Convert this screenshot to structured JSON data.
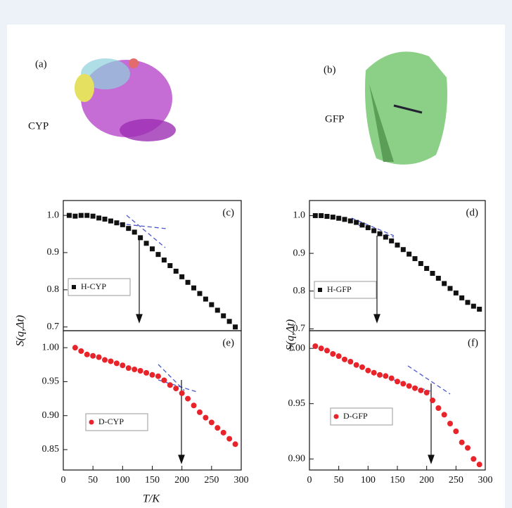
{
  "figure": {
    "panels_top": [
      {
        "label": "(a)",
        "protein": "CYP"
      },
      {
        "label": "(b)",
        "protein": "GFP"
      }
    ],
    "y_label": "S(q,Δt)",
    "x_label": "T/K"
  },
  "chart_data": [
    {
      "type": "scatter",
      "panel_label": "(c)",
      "x": [
        10,
        20,
        30,
        40,
        50,
        60,
        70,
        80,
        90,
        100,
        110,
        120,
        130,
        140,
        150,
        160,
        170,
        180,
        190,
        200,
        210,
        220,
        230,
        240,
        250,
        260,
        270,
        280,
        290
      ],
      "series": [
        {
          "name": "H-CYP",
          "color": "#111111",
          "marker": "square",
          "values": [
            1.0,
            0.998,
            1.0,
            1.0,
            0.998,
            0.993,
            0.99,
            0.985,
            0.98,
            0.975,
            0.965,
            0.955,
            0.94,
            0.925,
            0.91,
            0.895,
            0.88,
            0.865,
            0.85,
            0.835,
            0.82,
            0.805,
            0.79,
            0.775,
            0.76,
            0.745,
            0.73,
            0.715,
            0.7
          ]
        }
      ],
      "xlim": [
        0,
        300
      ],
      "ylim": [
        0.69,
        1.04
      ],
      "yticks": [
        0.7,
        0.8,
        0.9,
        {
          "value": 1,
          "label": "1.0"
        }
      ]
    },
    {
      "type": "scatter",
      "panel_label": "(d)",
      "x": [
        10,
        20,
        30,
        40,
        50,
        60,
        70,
        80,
        90,
        100,
        110,
        120,
        130,
        140,
        150,
        160,
        170,
        180,
        190,
        200,
        210,
        220,
        230,
        240,
        250,
        260,
        270,
        280,
        290
      ],
      "series": [
        {
          "name": "H-GFP",
          "color": "#111111",
          "marker": "square",
          "values": [
            1.0,
            1.0,
            0.998,
            0.996,
            0.993,
            0.99,
            0.986,
            0.982,
            0.975,
            0.968,
            0.96,
            0.952,
            0.943,
            0.933,
            0.922,
            0.91,
            0.898,
            0.886,
            0.873,
            0.86,
            0.847,
            0.834,
            0.82,
            0.807,
            0.795,
            0.782,
            0.77,
            0.76,
            0.752
          ]
        }
      ],
      "xlim": [
        0,
        300
      ],
      "ylim": [
        0.695,
        1.04
      ],
      "yticks": [
        0.7,
        0.8,
        0.9,
        {
          "value": 1,
          "label": "1.0"
        }
      ]
    },
    {
      "type": "scatter",
      "panel_label": "(e)",
      "x": [
        20,
        30,
        40,
        50,
        60,
        70,
        80,
        90,
        100,
        110,
        120,
        130,
        140,
        150,
        160,
        170,
        180,
        190,
        200,
        210,
        220,
        230,
        240,
        250,
        260,
        270,
        280,
        290
      ],
      "series": [
        {
          "name": "D-CYP",
          "color": "#e8232a",
          "marker": "circle",
          "values": [
            1.0,
            0.995,
            0.99,
            0.988,
            0.986,
            0.982,
            0.98,
            0.977,
            0.974,
            0.97,
            0.968,
            0.966,
            0.963,
            0.96,
            0.958,
            0.952,
            0.945,
            0.94,
            0.933,
            0.925,
            0.915,
            0.905,
            0.897,
            0.89,
            0.882,
            0.875,
            0.866,
            0.858
          ]
        }
      ],
      "xlim": [
        0,
        300
      ],
      "ylim": [
        0.82,
        1.025
      ],
      "xticks": [
        0,
        50,
        100,
        150,
        200,
        250,
        300
      ],
      "yticks": [
        0.85,
        {
          "value": 0.9,
          "label": "0.90"
        },
        0.95,
        {
          "value": 1,
          "label": "1.00"
        }
      ]
    },
    {
      "type": "scatter",
      "panel_label": "(f)",
      "x": [
        10,
        20,
        30,
        40,
        50,
        60,
        70,
        80,
        90,
        100,
        110,
        120,
        130,
        140,
        150,
        160,
        170,
        180,
        190,
        200,
        210,
        220,
        230,
        240,
        250,
        260,
        270,
        280,
        290
      ],
      "series": [
        {
          "name": "D-GFP",
          "color": "#e8232a",
          "marker": "circle",
          "values": [
            1.002,
            1.0,
            0.998,
            0.995,
            0.993,
            0.99,
            0.988,
            0.985,
            0.983,
            0.98,
            0.978,
            0.976,
            0.975,
            0.973,
            0.97,
            0.968,
            0.966,
            0.964,
            0.962,
            0.96,
            0.953,
            0.946,
            0.94,
            0.932,
            0.925,
            0.915,
            0.91,
            0.9,
            0.895
          ]
        }
      ],
      "xlim": [
        0,
        300
      ],
      "ylim": [
        0.89,
        1.016
      ],
      "xticks": [
        0,
        50,
        100,
        150,
        200,
        250,
        300
      ],
      "yticks": [
        {
          "value": 0.9,
          "label": "0.90"
        },
        0.95,
        {
          "value": 1,
          "label": "1.00"
        }
      ]
    }
  ]
}
